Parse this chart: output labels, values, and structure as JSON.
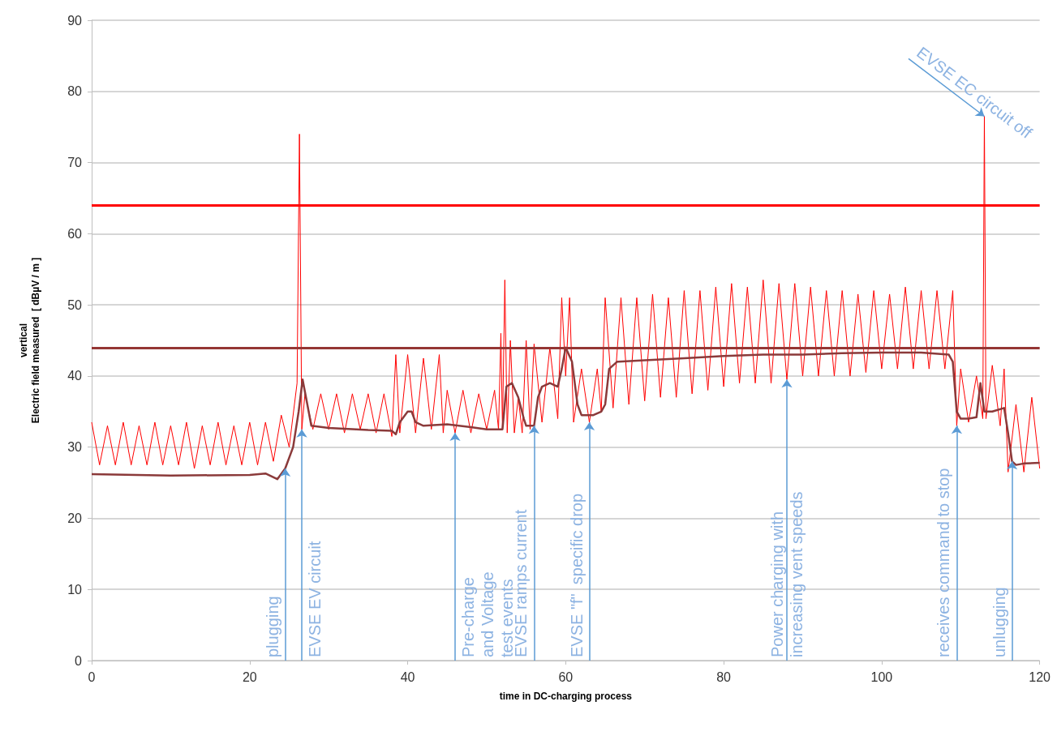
{
  "chart_data": {
    "type": "line",
    "xlabel": "time in DC-charging process",
    "ylabel": "vertical\nElectric field measured  [ dBµV / m ]",
    "xlim": [
      0,
      120
    ],
    "xticks": [
      0,
      20,
      40,
      60,
      80,
      100,
      120
    ],
    "ylim": [
      0,
      90
    ],
    "yticks": [
      0,
      10,
      20,
      30,
      40,
      50,
      60,
      70,
      80,
      90
    ],
    "grid": "y",
    "marker": "none",
    "line_style": "solid",
    "series": [
      {
        "color": "#ff0000",
        "x": [
          0,
          1,
          2,
          3,
          4,
          5,
          6,
          7,
          8,
          9,
          10,
          11,
          12,
          13,
          14,
          15,
          16,
          17,
          18,
          19,
          20,
          21,
          22,
          23,
          24,
          25,
          26,
          26.3,
          26.6,
          27,
          28,
          29,
          30,
          31,
          32,
          33,
          34,
          35,
          36,
          37,
          38,
          38.5,
          39,
          40,
          41,
          42,
          43,
          44,
          44.5,
          45,
          46,
          47,
          48,
          49,
          50,
          51,
          51.5,
          51.8,
          52,
          52.3,
          52.6,
          53,
          53.5,
          54,
          54.5,
          55,
          55.5,
          56,
          57,
          58,
          59,
          59.5,
          60,
          60.5,
          61,
          62,
          63,
          64,
          64.5,
          65,
          66,
          67,
          68,
          69,
          70,
          71,
          72,
          73,
          74,
          75,
          76,
          77,
          78,
          79,
          80,
          81,
          82,
          83,
          84,
          85,
          86,
          87,
          88,
          89,
          90,
          91,
          92,
          93,
          94,
          95,
          96,
          97,
          98,
          99,
          100,
          101,
          102,
          103,
          104,
          105,
          106,
          107,
          108,
          109,
          109.5,
          110,
          111,
          112,
          112.8,
          113,
          113.2,
          114,
          115,
          115.5,
          116,
          117,
          118,
          119,
          120
        ],
        "values": [
          33.5,
          27.5,
          33,
          27.5,
          33.5,
          27.5,
          33,
          27.5,
          33.5,
          27.5,
          33,
          27.5,
          33.5,
          27,
          33,
          27.5,
          33.5,
          27.5,
          33,
          27.5,
          33.5,
          27.5,
          33.5,
          28,
          34.5,
          30,
          39,
          74,
          32.5,
          37.5,
          32.5,
          37.5,
          32.5,
          37.5,
          32,
          37.5,
          32.5,
          37.5,
          32,
          37.5,
          31.5,
          43,
          32,
          43,
          32,
          42.5,
          32.5,
          43,
          32,
          38,
          32,
          38,
          32,
          37.5,
          32.5,
          38,
          32.5,
          46,
          32.5,
          53.5,
          32,
          45,
          32,
          37,
          32,
          45,
          32.5,
          44.5,
          33.5,
          44,
          34,
          51,
          40,
          51,
          33.5,
          41,
          33.5,
          41,
          35,
          51,
          35.5,
          51,
          36,
          51,
          36.5,
          51.5,
          37,
          51,
          37,
          52,
          37.5,
          52,
          38,
          52.5,
          38.5,
          53,
          39,
          52.5,
          39,
          53.5,
          39,
          53,
          39.5,
          53,
          40,
          52.5,
          40,
          52,
          40,
          52,
          40,
          51.5,
          40.5,
          52,
          41,
          51.5,
          41,
          52.5,
          41,
          52,
          41,
          52,
          41,
          52,
          33,
          41,
          33.5,
          40,
          34,
          76.5,
          34,
          41.5,
          33,
          41,
          26.5,
          36,
          26.5,
          37,
          27
        ]
      },
      {
        "color": "#8b3a3a",
        "x": [
          0,
          10,
          20,
          22,
          23.5,
          24.5,
          25.5,
          26.2,
          26.7,
          27.3,
          27.8,
          30,
          35,
          38,
          38.5,
          39,
          40,
          40.5,
          41,
          42,
          45,
          48,
          50,
          52,
          52.5,
          53.2,
          54,
          54.7,
          55,
          56,
          56.5,
          57,
          58,
          59,
          59.5,
          60,
          60.8,
          61.5,
          62,
          63.5,
          64.5,
          65,
          65.5,
          66.5,
          70,
          75,
          80,
          85,
          90,
          95,
          100,
          105,
          108.5,
          109,
          109.5,
          110,
          111,
          112,
          112.5,
          113,
          114,
          115.5,
          116,
          116.5,
          117,
          118,
          120
        ],
        "values": [
          26.2,
          26,
          26.1,
          26.3,
          25.5,
          27,
          30,
          35,
          39.5,
          36,
          33,
          32.7,
          32.4,
          32.3,
          31.8,
          33.5,
          35,
          35,
          33.5,
          33,
          33.2,
          32.8,
          32.5,
          32.5,
          38.5,
          39,
          37,
          34,
          33,
          33,
          37,
          38.5,
          39,
          38.5,
          41,
          44,
          42,
          36,
          34.5,
          34.5,
          35,
          36,
          41,
          42,
          42.2,
          42.5,
          42.8,
          43,
          43,
          43.2,
          43.3,
          43.3,
          43,
          42,
          35,
          34,
          34,
          34.2,
          39,
          35,
          35,
          35.5,
          32,
          28,
          27.5,
          27.7,
          27.8
        ]
      }
    ],
    "ref_lines": [
      {
        "axis": "y",
        "value": 64,
        "color": "#ff0000",
        "line_style": "solid"
      },
      {
        "axis": "y",
        "value": 44,
        "color": "#943634",
        "line_style": "solid"
      }
    ],
    "annotations": [
      {
        "text": "plugging",
        "x": 24.5,
        "y": 27
      },
      {
        "text": "EVSE EV circuit",
        "x": 26.6,
        "y": 32.5
      },
      {
        "text": "Pre-charge\nand Voltage\ntest events",
        "x": 46,
        "y": 32
      },
      {
        "text": "EVSE ramps current",
        "x": 56,
        "y": 33
      },
      {
        "text": "EVSE \"f\"  specific drop",
        "x": 63,
        "y": 33.5
      },
      {
        "text": "Power charging with\nincreasing vent speeds",
        "x": 88,
        "y": 39.5
      },
      {
        "text": "receives command to stop",
        "x": 109.5,
        "y": 33
      },
      {
        "text": "unlugging",
        "x": 116.5,
        "y": 28
      },
      {
        "text": "EVSE EC circuit off",
        "x": 113,
        "y": 76.5
      }
    ]
  }
}
